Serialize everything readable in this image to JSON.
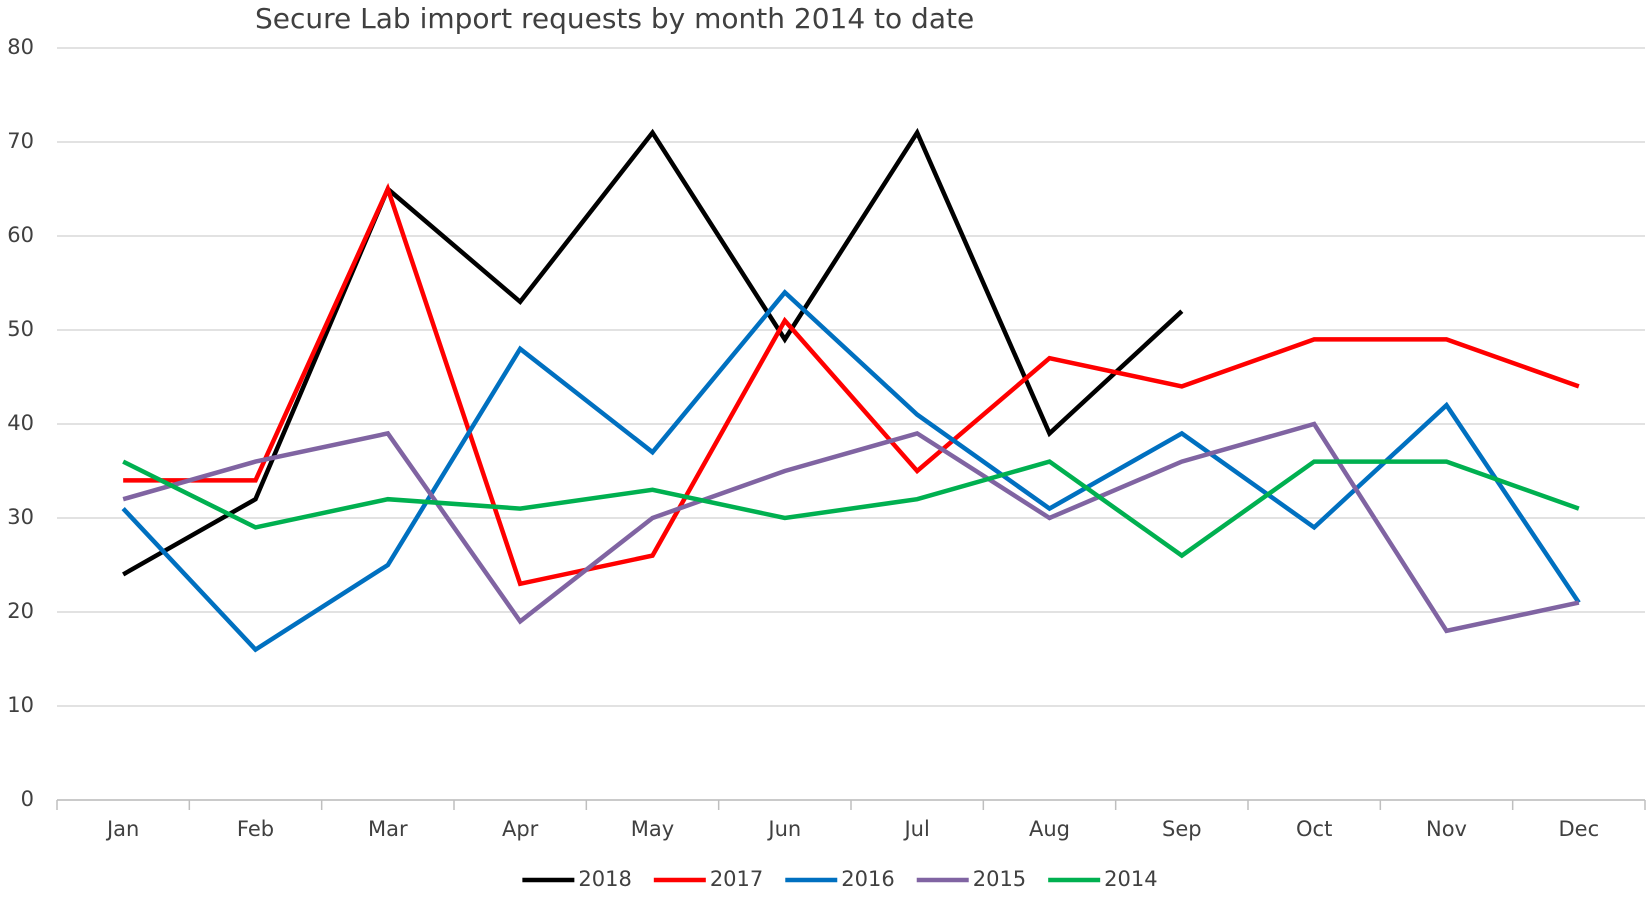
{
  "chart_data": {
    "type": "line",
    "title": "Secure Lab import requests by month 2014 to date",
    "categories": [
      "Jan",
      "Feb",
      "Mar",
      "Apr",
      "May",
      "Jun",
      "Jul",
      "Aug",
      "Sep",
      "Oct",
      "Nov",
      "Dec"
    ],
    "series": [
      {
        "name": "2018",
        "color": "#000000",
        "values": [
          24,
          32,
          65,
          53,
          71,
          49,
          71,
          39,
          52,
          null,
          null,
          null
        ]
      },
      {
        "name": "2017",
        "color": "#ff0000",
        "values": [
          34,
          34,
          65,
          23,
          26,
          51,
          35,
          47,
          44,
          49,
          49,
          44
        ]
      },
      {
        "name": "2016",
        "color": "#0070c0",
        "values": [
          31,
          16,
          25,
          48,
          37,
          54,
          41,
          31,
          39,
          29,
          42,
          21
        ]
      },
      {
        "name": "2015",
        "color": "#8064a2",
        "values": [
          32,
          36,
          39,
          19,
          30,
          35,
          39,
          30,
          36,
          40,
          18,
          21
        ]
      },
      {
        "name": "2014",
        "color": "#00b050",
        "values": [
          36,
          29,
          32,
          31,
          33,
          30,
          32,
          36,
          26,
          36,
          36,
          31
        ]
      }
    ],
    "ylim": [
      0,
      80
    ],
    "yticks": [
      0,
      10,
      20,
      30,
      40,
      50,
      60,
      70,
      80
    ],
    "grid": true,
    "legend": "bottom"
  }
}
